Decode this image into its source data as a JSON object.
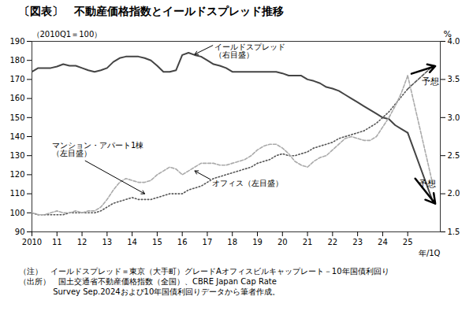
{
  "chart_data": {
    "type": "line",
    "title": "〔図表〕　不動産価格指数とイールドスプレッド推移",
    "ylabel": "（2010Q1＝100）",
    "y2label": "%",
    "xlabel": "年/1Q",
    "x": [
      2010.0,
      2010.25,
      2010.5,
      2010.75,
      2011.0,
      2011.25,
      2011.5,
      2011.75,
      2012.0,
      2012.25,
      2012.5,
      2012.75,
      2013.0,
      2013.25,
      2013.5,
      2013.75,
      2014.0,
      2014.25,
      2014.5,
      2014.75,
      2015.0,
      2015.25,
      2015.5,
      2015.75,
      2016.0,
      2016.25,
      2016.5,
      2016.75,
      2017.0,
      2017.25,
      2017.5,
      2017.75,
      2018.0,
      2018.25,
      2018.5,
      2018.75,
      2019.0,
      2019.25,
      2019.5,
      2019.75,
      2020.0,
      2020.25,
      2020.5,
      2020.75,
      2021.0,
      2021.25,
      2021.5,
      2021.75,
      2022.0,
      2022.25,
      2022.5,
      2022.75,
      2023.0,
      2023.25,
      2023.5,
      2023.75,
      2024.0,
      2024.25,
      2024.5,
      2024.75,
      2025.0
    ],
    "xlim": [
      2010.0,
      2026.3
    ],
    "xticks": [
      2010,
      {
        "value": 2011,
        "label": "11"
      },
      {
        "value": 2012,
        "label": "12"
      },
      {
        "value": 2013,
        "label": "13"
      },
      {
        "value": 2014,
        "label": "14"
      },
      {
        "value": 2015,
        "label": "15"
      },
      {
        "value": 2016,
        "label": "16"
      },
      {
        "value": 2017,
        "label": "17"
      },
      {
        "value": 2018,
        "label": "18"
      },
      {
        "value": 2019,
        "label": "19"
      },
      {
        "value": 2020,
        "label": "20"
      },
      {
        "value": 2021,
        "label": "21"
      },
      {
        "value": 2022,
        "label": "22"
      },
      {
        "value": 2023,
        "label": "23"
      },
      {
        "value": 2024,
        "label": "24"
      },
      {
        "value": 2025,
        "label": "25"
      }
    ],
    "ylim": [
      90,
      190
    ],
    "yticks": [
      90,
      100,
      110,
      120,
      130,
      140,
      150,
      160,
      170,
      180,
      190
    ],
    "y2lim": [
      1.5,
      4.0
    ],
    "y2ticks": [
      1.5,
      {
        "value": 2.0,
        "label": "2.0"
      },
      2.5,
      {
        "value": 3.0,
        "label": "3.0"
      },
      3.5,
      {
        "value": 4.0,
        "label": "4.0"
      }
    ],
    "series": [
      {
        "axis": "y2",
        "color": "#444444",
        "line_style": "solid",
        "values": [
          3.6,
          3.65,
          3.65,
          3.65,
          3.67,
          3.7,
          3.68,
          3.68,
          3.65,
          3.62,
          3.6,
          3.62,
          3.65,
          3.73,
          3.78,
          3.8,
          3.8,
          3.8,
          3.78,
          3.75,
          3.68,
          3.6,
          3.6,
          3.62,
          3.82,
          3.85,
          3.82,
          3.8,
          3.75,
          3.7,
          3.68,
          3.65,
          3.6,
          3.6,
          3.6,
          3.6,
          3.6,
          3.6,
          3.6,
          3.6,
          3.58,
          3.55,
          3.55,
          3.55,
          3.5,
          3.48,
          3.45,
          3.4,
          3.38,
          3.35,
          3.3,
          3.25,
          3.2,
          3.15,
          3.1,
          3.05,
          3.0,
          2.98,
          2.9,
          2.85,
          2.8
        ]
      },
      {
        "axis": "y",
        "color": "#555555",
        "line_style": "dotted",
        "values": [
          100,
          99,
          99,
          99,
          99,
          99,
          100,
          100,
          100,
          100,
          100,
          101,
          103,
          105,
          106,
          107,
          108,
          107,
          107,
          107,
          108,
          109,
          110,
          110,
          110,
          112,
          113,
          114,
          116,
          118,
          119,
          120,
          121,
          122,
          123,
          124,
          126,
          127,
          128,
          130,
          131,
          130,
          130,
          131,
          132,
          134,
          135,
          136,
          137,
          139,
          140,
          141,
          142,
          143,
          145,
          147,
          150,
          153,
          157,
          161,
          165
        ]
      },
      {
        "axis": "y",
        "color": "#aaaaaa",
        "line_style": "dashed",
        "values": [
          100,
          99,
          99,
          100,
          101,
          100,
          100,
          101,
          100,
          101,
          101,
          103,
          107,
          112,
          116,
          118,
          117,
          116,
          116,
          117,
          120,
          122,
          124,
          123,
          120,
          122,
          124,
          126,
          126,
          126,
          125,
          125,
          126,
          127,
          128,
          130,
          133,
          135,
          136,
          136,
          134,
          131,
          127,
          125,
          124,
          127,
          129,
          130,
          133,
          136,
          139,
          140,
          139,
          138,
          138,
          140,
          145,
          150,
          156,
          163,
          172
        ]
      },
      {
        "axis": "y",
        "color": "#555555",
        "line_style": "dashed",
        "x": [
          2025.0,
          2026.0
        ],
        "values": [
          165,
          177
        ]
      },
      {
        "axis": "y",
        "color": "#aaaaaa",
        "line_style": "dashed",
        "x": [
          2025.0,
          2026.0
        ],
        "values": [
          172,
          115
        ]
      },
      {
        "axis": "y2",
        "color": "#444444",
        "line_style": "solid",
        "x": [
          2025.0,
          2026.0
        ],
        "values": [
          2.8,
          1.9
        ]
      }
    ],
    "annotations": [
      {
        "text": "イールドスプレッド\n（右目盛）",
        "x": 2017.3,
        "y": 3.96,
        "axis": "y2",
        "arrow": {
          "x": 2016.5,
          "y": 3.83
        }
      },
      {
        "text": "マンション・アパート1棟\n（左目盛）",
        "x": 2010.8,
        "y": 137,
        "axis": "y",
        "arrow": {
          "x": 2014.5,
          "y": 110
        }
      },
      {
        "text": "オフィス（左目盛）",
        "x": 2017.2,
        "y": 117,
        "axis": "y",
        "arrow": {
          "x": 2016.5,
          "y": 122
        }
      },
      {
        "text": "予想",
        "x": 2025.55,
        "y": 3.47,
        "axis": "y2",
        "arrow": {
          "from": [
            2025.15,
            173
          ],
          "to": [
            2026.1,
            177
          ],
          "axis": "y"
        }
      },
      {
        "text": "予想",
        "x": 2025.45,
        "y": 2.13,
        "axis": "y2",
        "arrow": {
          "from": [
            2025.3,
            2.2
          ],
          "to": [
            2026.1,
            1.87
          ],
          "axis": "y2"
        }
      }
    ],
    "notes": [
      "（注）　イールドスプレッド＝東京（大手町）グレードAオフィスビルキャップレート－10年国債利回り",
      "（出所）　国土交通省不動産価格指数（全国）、CBRE Japan Cap Rate",
      "　　　　 Survey Sep.2024および10年国債利回りデータから筆者作成。"
    ]
  }
}
